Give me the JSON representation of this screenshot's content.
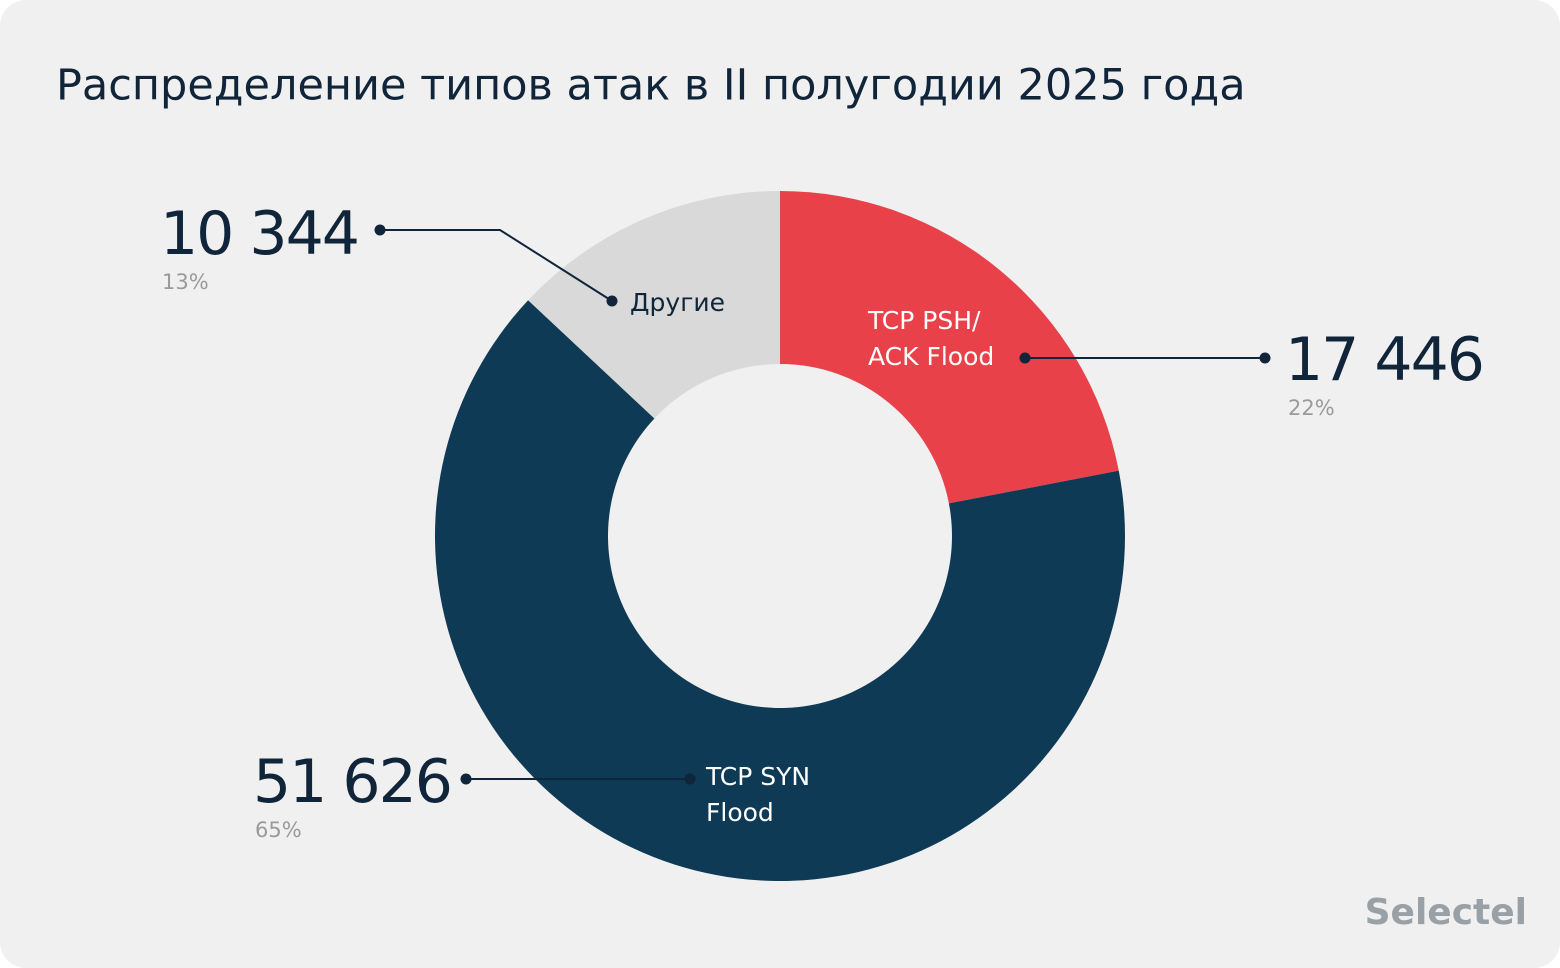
{
  "chart_data": {
    "type": "pie",
    "donut": true,
    "title": "Распределение типов атак в II полугодии 2025 года",
    "categories": [
      "TCP PSH/ ACK Flood",
      "TCP SYN Flood",
      "Другие"
    ],
    "values": [
      17446,
      51626,
      10344
    ],
    "value_labels": [
      "17 446",
      "51 626",
      "10 344"
    ],
    "percent_labels": [
      "22%",
      "65%",
      "13%"
    ],
    "colors": [
      "#e8414a",
      "#0f3a55",
      "#d9d9d9"
    ],
    "brand": "Selectel"
  }
}
